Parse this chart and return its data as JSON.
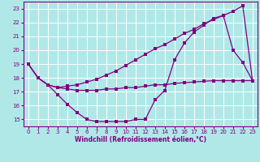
{
  "xlabel": "Windchill (Refroidissement éolien,°C)",
  "bg_color": "#b0e8e8",
  "grid_color": "#c8e8e8",
  "line_color": "#800080",
  "xlim": [
    -0.5,
    23.5
  ],
  "ylim": [
    14.5,
    23.5
  ],
  "xticks": [
    0,
    1,
    2,
    3,
    4,
    5,
    6,
    7,
    8,
    9,
    10,
    11,
    12,
    13,
    14,
    15,
    16,
    17,
    18,
    19,
    20,
    21,
    22,
    23
  ],
  "yticks": [
    15,
    16,
    17,
    18,
    19,
    20,
    21,
    22,
    23
  ],
  "curve1_x": [
    0,
    1,
    2,
    3,
    4,
    5,
    6,
    7,
    8,
    9,
    10,
    11,
    12,
    13,
    14,
    15,
    16,
    17,
    18,
    19,
    20,
    21,
    22,
    23
  ],
  "curve1_y": [
    19.0,
    18.0,
    17.5,
    16.8,
    16.1,
    15.5,
    15.0,
    14.85,
    14.85,
    14.85,
    14.85,
    15.0,
    15.0,
    16.4,
    17.1,
    19.3,
    20.5,
    21.3,
    21.8,
    22.3,
    22.5,
    20.0,
    19.1,
    17.8
  ],
  "line2_x": [
    0,
    1,
    2,
    3,
    4,
    5,
    6,
    7,
    8,
    9,
    10,
    11,
    12,
    13,
    14,
    15,
    16,
    17,
    18,
    19,
    20,
    21,
    22,
    23
  ],
  "line2_y": [
    19.0,
    18.0,
    17.5,
    17.3,
    17.2,
    17.1,
    17.1,
    17.1,
    17.2,
    17.2,
    17.3,
    17.3,
    17.4,
    17.5,
    17.5,
    17.6,
    17.65,
    17.7,
    17.75,
    17.8,
    17.8,
    17.8,
    17.8,
    17.8
  ],
  "diag3_x": [
    0,
    1,
    2,
    3,
    4,
    5,
    6,
    7,
    8,
    9,
    10,
    11,
    12,
    13,
    14,
    15,
    16,
    17,
    18,
    19,
    20,
    21,
    22,
    23
  ],
  "diag3_y": [
    19.0,
    18.0,
    17.5,
    17.3,
    17.4,
    17.5,
    17.7,
    17.9,
    18.2,
    18.5,
    18.9,
    19.3,
    19.7,
    20.1,
    20.4,
    20.8,
    21.2,
    21.5,
    21.9,
    22.2,
    22.5,
    22.8,
    23.2,
    17.8
  ]
}
